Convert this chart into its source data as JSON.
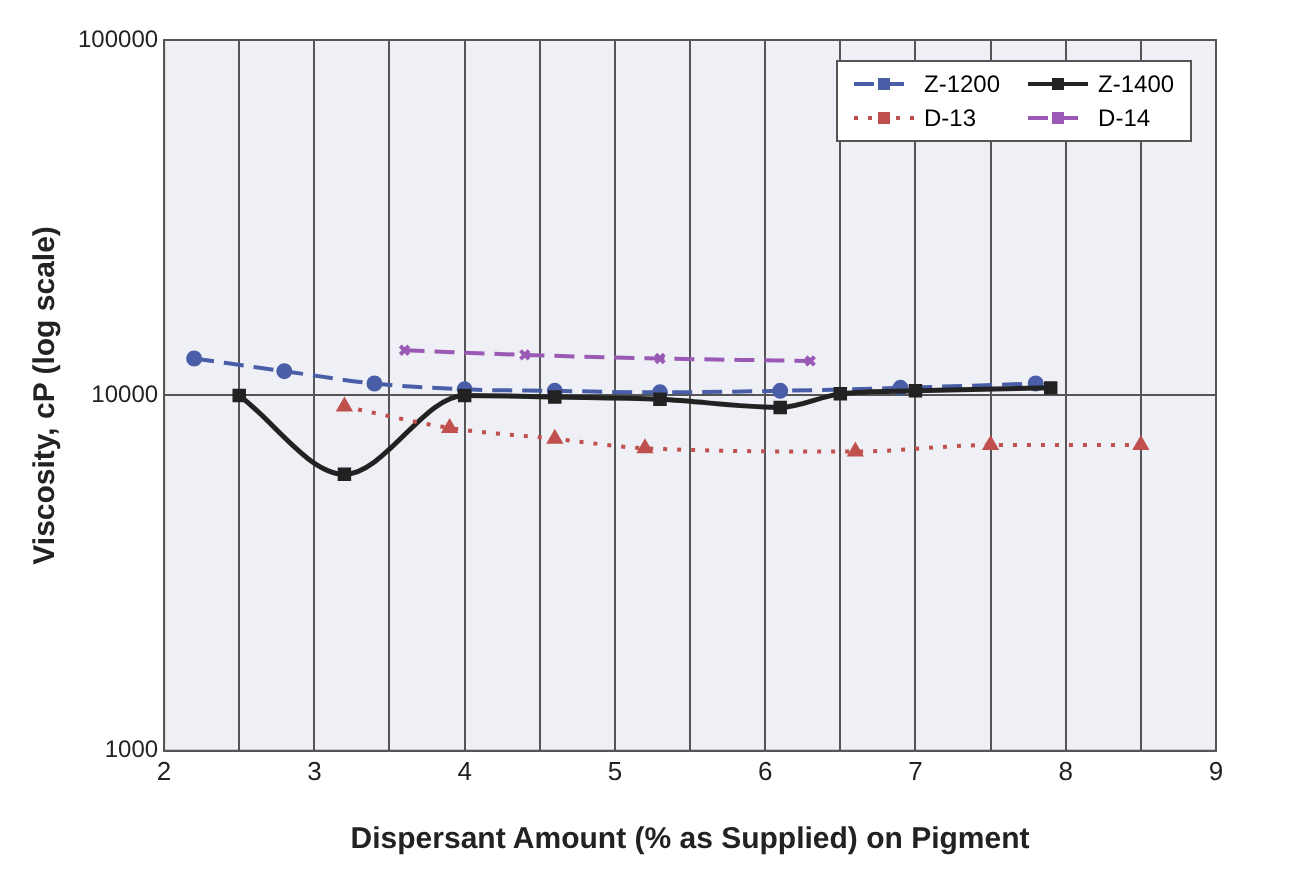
{
  "chart_data": {
    "type": "line",
    "xlabel": "Dispersant Amount (% as Supplied) on Pigment",
    "ylabel": "Viscosity, cP (log scale)",
    "log": "y",
    "xlim": [
      2,
      9
    ],
    "xticks": [
      2,
      {
        "value": 2.5,
        "label": null
      },
      3,
      {
        "value": 3.5,
        "label": null
      },
      4,
      {
        "value": 4.5,
        "label": null
      },
      5,
      {
        "value": 5.5,
        "label": null
      },
      6,
      {
        "value": 6.5,
        "label": null
      },
      7,
      {
        "value": 7.5,
        "label": null
      },
      8,
      {
        "value": 8.5,
        "label": null
      },
      9
    ],
    "ylim": [
      1000,
      100000
    ],
    "yticks": [
      1000,
      10000,
      100000
    ],
    "grid": true,
    "legend": "top right",
    "series": [
      {
        "name": "Z-1200",
        "color": "#4a5ea8",
        "marker": "circle",
        "line_style": "dashed",
        "x": [
          2.2,
          2.8,
          3.4,
          4.0,
          4.6,
          5.3,
          6.1,
          6.9,
          7.8
        ],
        "values": [
          12700,
          11700,
          10800,
          10400,
          10300,
          10200,
          10300,
          10500,
          10800
        ]
      },
      {
        "name": "Z-1400",
        "color": "#222222",
        "marker": "square",
        "line_style": "solid",
        "x": [
          2.5,
          3.2,
          4.0,
          4.6,
          5.3,
          6.1,
          6.5,
          7.0,
          7.9
        ],
        "values": [
          10000,
          6000,
          10000,
          9900,
          9750,
          9250,
          10100,
          10300,
          10500
        ]
      },
      {
        "name": "D-13",
        "color": "#c0504d",
        "marker": "triangle",
        "line_style": "dotted",
        "x": [
          3.2,
          3.9,
          4.6,
          5.2,
          6.6,
          7.5,
          8.5
        ],
        "values": [
          9300,
          8100,
          7550,
          7100,
          6950,
          7250,
          7250
        ]
      },
      {
        "name": "D-14",
        "color": "#9b59b6",
        "marker": "cross",
        "line_style": "dashed",
        "x": [
          3.6,
          4.4,
          5.3,
          6.3
        ],
        "values": [
          13400,
          13000,
          12700,
          12500
        ]
      }
    ]
  }
}
